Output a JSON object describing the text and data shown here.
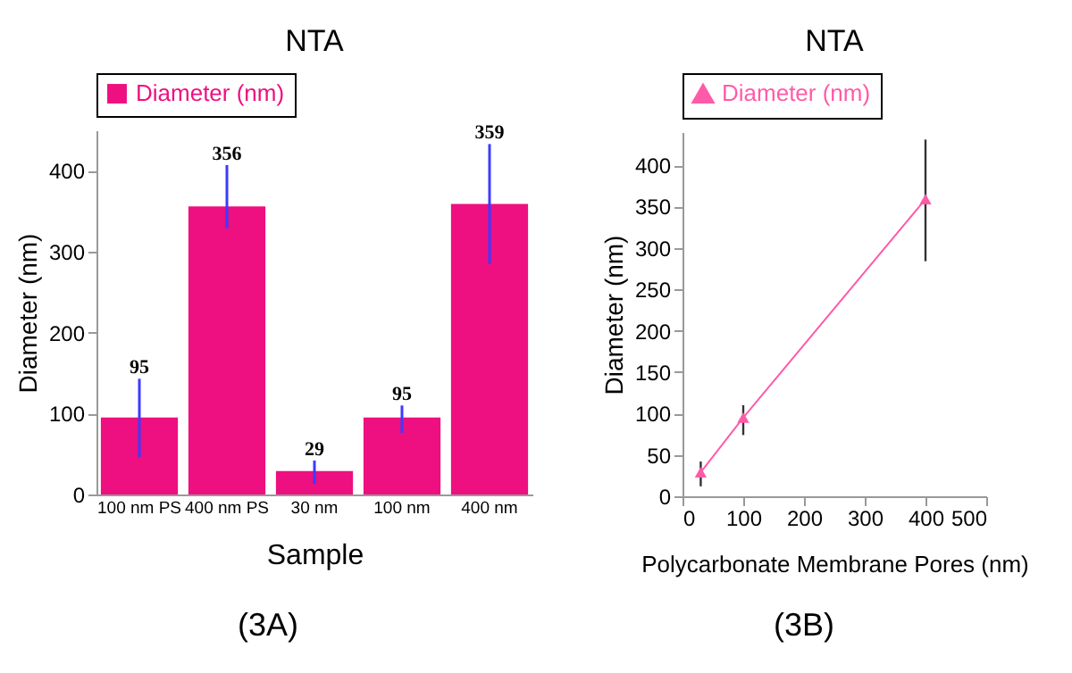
{
  "chart_data": [
    {
      "type": "bar",
      "title": "NTA",
      "categories": [
        "100 nm PS",
        "400 nm PS",
        "30 nm",
        "100 nm",
        "400 nm"
      ],
      "series": [
        {
          "name": "Diameter (nm)",
          "color": "#ee0f80",
          "values": [
            95,
            356,
            29,
            95,
            359
          ],
          "errors": [
            [
              46,
              143
            ],
            [
              329,
              407
            ],
            [
              13,
              42
            ],
            [
              76,
              110
            ],
            [
              285,
              433
            ]
          ]
        }
      ],
      "xlabel": "Sample",
      "ylabel": "Diameter (nm)",
      "ylim": [
        0,
        450
      ],
      "yticks": [
        0,
        100,
        200,
        300,
        400
      ],
      "data_labels": true,
      "legend": "top",
      "grid": false,
      "annotations": [
        "(3A)"
      ]
    },
    {
      "type": "line",
      "title": "NTA",
      "x": [
        30,
        100,
        400
      ],
      "series": [
        {
          "name": "Diameter (nm)",
          "color": "#ff5aa8",
          "values": [
            29,
            95,
            359
          ],
          "errors": [
            [
              12,
              42
            ],
            [
              74,
              110
            ],
            [
              284,
              431
            ]
          ]
        }
      ],
      "xlabel": "Polycarbonate Membrane Pores (nm)",
      "ylabel": "Diameter (nm)",
      "xlim": [
        0,
        500
      ],
      "xticks": [
        0,
        100,
        200,
        300,
        400,
        500
      ],
      "ylim": [
        0,
        440
      ],
      "yticks": [
        0,
        50,
        100,
        150,
        200,
        250,
        300,
        350,
        400
      ],
      "marker": "triangle",
      "legend": "top",
      "grid": false,
      "annotations": [
        "(3B)"
      ]
    }
  ]
}
